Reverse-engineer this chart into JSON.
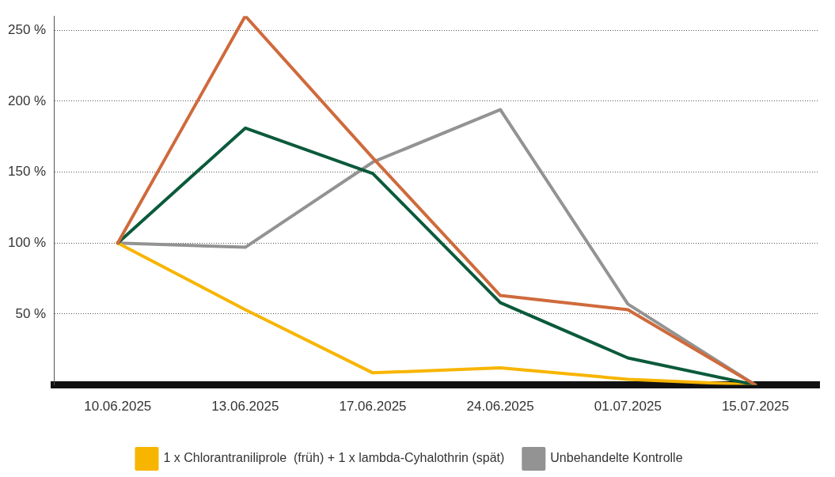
{
  "chart_data": {
    "type": "line",
    "categories": [
      "10.06.2025",
      "13.06.2025",
      "17.06.2025",
      "24.06.2025",
      "01.07.2025",
      "15.07.2025"
    ],
    "series": [
      {
        "color": "#cf6a3c",
        "values": [
          100,
          260,
          160,
          63,
          53,
          0
        ]
      },
      {
        "color": "#0b5a3b",
        "values": [
          100,
          181,
          149,
          58,
          19,
          0
        ]
      },
      {
        "name": "1 x Chlorantraniliprole  (früh) + 1 x lambda-Cyhalothrin (spät)",
        "color": "#f7b500",
        "values": [
          100,
          53,
          8.5,
          12,
          4,
          0
        ]
      },
      {
        "name": "Unbehandelte Kontrolle",
        "color": "#939393",
        "values": [
          100,
          97,
          157,
          194,
          57,
          0
        ]
      }
    ],
    "ylim": [
      0,
      260
    ],
    "yticks": [
      {
        "value": 50,
        "label": "50 %"
      },
      {
        "value": 100,
        "label": "100 %"
      },
      {
        "value": 150,
        "label": "150 %"
      },
      {
        "value": 200,
        "label": "200 %"
      },
      {
        "value": 250,
        "label": "250 %"
      }
    ],
    "grid": "y",
    "legend": "bottom",
    "marker": "none",
    "line_style": "solid"
  }
}
